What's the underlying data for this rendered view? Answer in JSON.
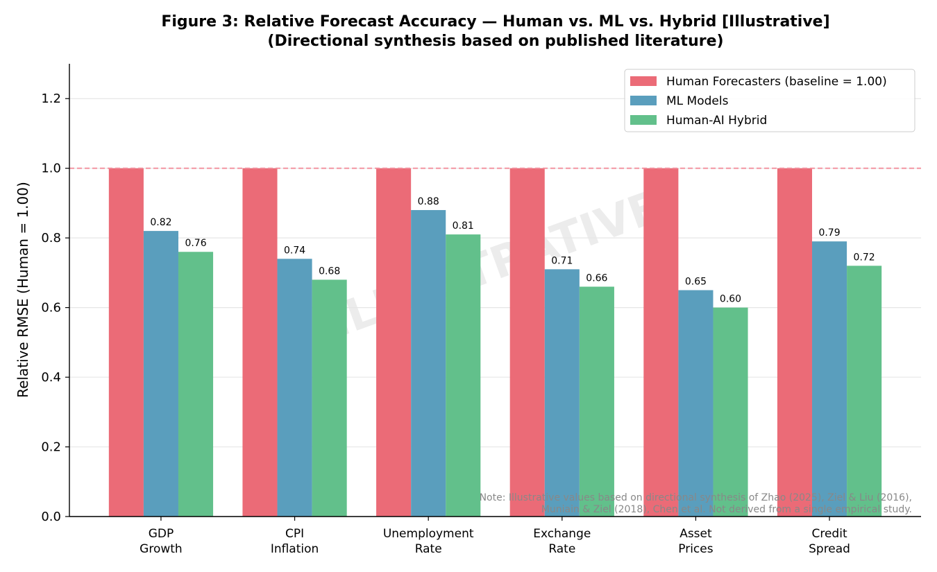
{
  "chart_data": {
    "type": "bar",
    "title": [
      "Figure 3: Relative Forecast Accuracy — Human vs. ML vs. Hybrid [Illustrative]",
      "(Directional synthesis based on published literature)"
    ],
    "y_label": "Relative RMSE (Human = 1.00)",
    "categories": [
      [
        "GDP",
        "Growth"
      ],
      [
        "CPI",
        "Inflation"
      ],
      [
        "Unemployment",
        "Rate"
      ],
      [
        "Exchange",
        "Rate"
      ],
      [
        "Asset",
        "Prices"
      ],
      [
        "Credit",
        "Spread"
      ]
    ],
    "series": [
      {
        "name": "Human Forecasters (baseline = 1.00)",
        "color": "#eb6b77",
        "values": [
          1,
          1,
          1,
          1,
          1,
          1
        ]
      },
      {
        "name": "ML Models",
        "color": "#5a9ebd",
        "values": [
          0.82,
          0.74,
          0.88,
          0.71,
          0.65,
          0.79
        ],
        "value_labels": [
          "0.82",
          "0.74",
          "0.88",
          "0.71",
          "0.65",
          "0.79"
        ]
      },
      {
        "name": "Human-AI Hybrid",
        "color": "#62c08b",
        "values": [
          0.76,
          0.68,
          0.81,
          0.66,
          0.6,
          0.72
        ],
        "value_labels": [
          "0.76",
          "0.68",
          "0.81",
          "0.66",
          "0.60",
          "0.72"
        ]
      }
    ],
    "reference_line": 1,
    "reference_color": "#f28e9b",
    "ylim": [
      0,
      1.3
    ],
    "yticks": [
      {
        "value": 0,
        "label": "0.0"
      },
      0.2,
      0.4,
      0.6,
      0.8,
      {
        "value": 1,
        "label": "1.0"
      },
      1.2
    ],
    "grid": true,
    "legend": "upper right",
    "watermark": "ILLUSTRATIVE",
    "note": [
      "Note: Illustrative values based on directional synthesis of Zhao (2025), Ziel & Liu (2016),",
      "Muniain & Ziel (2018), Chen et al. Not derived from a single empirical study."
    ]
  }
}
